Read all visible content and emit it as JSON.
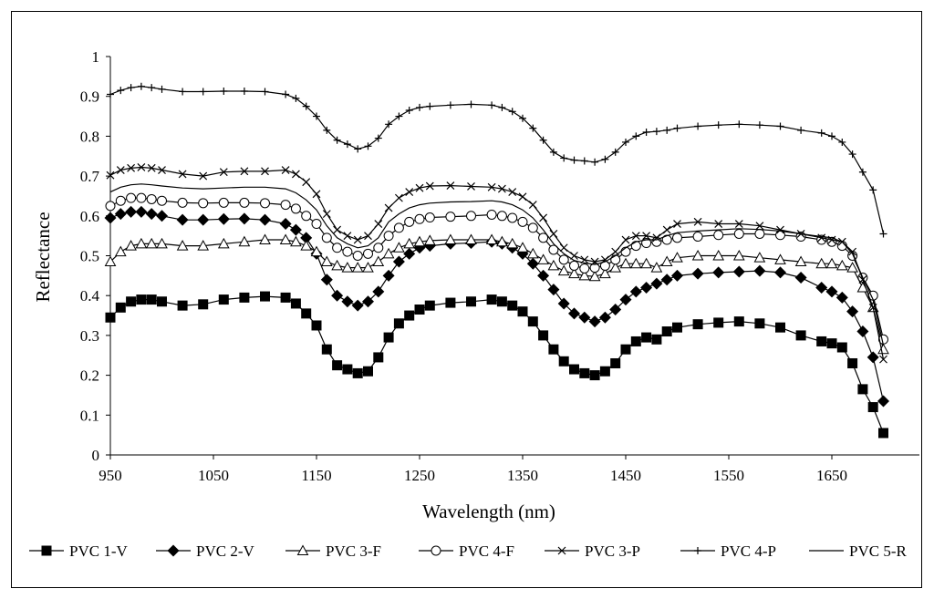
{
  "chart_data": {
    "type": "line",
    "title": "",
    "xlabel": "Wavelength (nm)",
    "ylabel": "Reflectance",
    "xlim": [
      950,
      1700
    ],
    "ylim": [
      0,
      1
    ],
    "x_ticks": [
      "950",
      "1050",
      "1150",
      "1250",
      "1350",
      "1450",
      "1550",
      "1650"
    ],
    "y_ticks": [
      "0",
      "0.1",
      "0.2",
      "0.3",
      "0.4",
      "0.5",
      "0.6",
      "0.7",
      "0.8",
      "0.9",
      "1"
    ],
    "grid": false,
    "legend_position": "bottom",
    "x": [
      950,
      960,
      970,
      980,
      990,
      1000,
      1020,
      1040,
      1060,
      1080,
      1100,
      1120,
      1130,
      1140,
      1150,
      1160,
      1170,
      1180,
      1190,
      1200,
      1210,
      1220,
      1230,
      1240,
      1250,
      1260,
      1280,
      1300,
      1320,
      1330,
      1340,
      1350,
      1360,
      1370,
      1380,
      1390,
      1400,
      1410,
      1420,
      1430,
      1440,
      1450,
      1460,
      1470,
      1480,
      1490,
      1500,
      1520,
      1540,
      1560,
      1580,
      1600,
      1620,
      1640,
      1650,
      1660,
      1670,
      1680,
      1690,
      1700
    ],
    "series": [
      {
        "name": "PVC 1-V",
        "marker": "square",
        "values": [
          0.345,
          0.37,
          0.385,
          0.39,
          0.39,
          0.385,
          0.375,
          0.378,
          0.39,
          0.395,
          0.398,
          0.395,
          0.38,
          0.355,
          0.325,
          0.265,
          0.225,
          0.215,
          0.205,
          0.21,
          0.245,
          0.295,
          0.33,
          0.35,
          0.365,
          0.375,
          0.382,
          0.385,
          0.39,
          0.385,
          0.375,
          0.36,
          0.335,
          0.3,
          0.265,
          0.235,
          0.215,
          0.205,
          0.2,
          0.21,
          0.23,
          0.265,
          0.285,
          0.295,
          0.29,
          0.31,
          0.32,
          0.328,
          0.332,
          0.335,
          0.33,
          0.32,
          0.3,
          0.285,
          0.28,
          0.27,
          0.23,
          0.165,
          0.12,
          0.055
        ]
      },
      {
        "name": "PVC 2-V",
        "marker": "diamond",
        "values": [
          0.595,
          0.605,
          0.61,
          0.61,
          0.605,
          0.6,
          0.59,
          0.59,
          0.592,
          0.593,
          0.59,
          0.58,
          0.565,
          0.545,
          0.505,
          0.44,
          0.4,
          0.385,
          0.375,
          0.385,
          0.41,
          0.45,
          0.485,
          0.505,
          0.52,
          0.525,
          0.53,
          0.532,
          0.535,
          0.53,
          0.52,
          0.505,
          0.48,
          0.45,
          0.415,
          0.38,
          0.355,
          0.345,
          0.335,
          0.345,
          0.365,
          0.39,
          0.41,
          0.42,
          0.43,
          0.44,
          0.45,
          0.455,
          0.458,
          0.46,
          0.462,
          0.458,
          0.445,
          0.42,
          0.41,
          0.395,
          0.36,
          0.31,
          0.245,
          0.135
        ]
      },
      {
        "name": "PVC 3-F",
        "marker": "triangle",
        "values": [
          0.485,
          0.51,
          0.525,
          0.53,
          0.53,
          0.53,
          0.525,
          0.525,
          0.53,
          0.535,
          0.54,
          0.54,
          0.535,
          0.525,
          0.51,
          0.485,
          0.475,
          0.47,
          0.47,
          0.47,
          0.485,
          0.505,
          0.52,
          0.53,
          0.535,
          0.538,
          0.54,
          0.54,
          0.54,
          0.535,
          0.53,
          0.52,
          0.505,
          0.49,
          0.475,
          0.462,
          0.455,
          0.45,
          0.448,
          0.455,
          0.47,
          0.48,
          0.48,
          0.48,
          0.47,
          0.485,
          0.495,
          0.5,
          0.5,
          0.5,
          0.495,
          0.49,
          0.485,
          0.48,
          0.48,
          0.475,
          0.47,
          0.42,
          0.37,
          0.265
        ]
      },
      {
        "name": "PVC 4-F",
        "marker": "circle",
        "values": [
          0.625,
          0.638,
          0.645,
          0.645,
          0.642,
          0.638,
          0.633,
          0.632,
          0.633,
          0.633,
          0.632,
          0.628,
          0.618,
          0.6,
          0.58,
          0.545,
          0.52,
          0.51,
          0.5,
          0.505,
          0.52,
          0.55,
          0.57,
          0.585,
          0.592,
          0.596,
          0.598,
          0.6,
          0.603,
          0.6,
          0.595,
          0.585,
          0.57,
          0.545,
          0.515,
          0.49,
          0.475,
          0.468,
          0.47,
          0.475,
          0.49,
          0.51,
          0.525,
          0.532,
          0.535,
          0.54,
          0.545,
          0.548,
          0.552,
          0.555,
          0.555,
          0.552,
          0.548,
          0.54,
          0.535,
          0.525,
          0.5,
          0.445,
          0.4,
          0.29
        ]
      },
      {
        "name": "PVC 3-P",
        "marker": "x",
        "values": [
          0.702,
          0.715,
          0.72,
          0.722,
          0.72,
          0.715,
          0.705,
          0.7,
          0.71,
          0.712,
          0.712,
          0.715,
          0.705,
          0.685,
          0.655,
          0.605,
          0.565,
          0.55,
          0.54,
          0.55,
          0.58,
          0.62,
          0.645,
          0.66,
          0.67,
          0.675,
          0.676,
          0.674,
          0.672,
          0.668,
          0.66,
          0.648,
          0.628,
          0.595,
          0.555,
          0.52,
          0.5,
          0.49,
          0.485,
          0.49,
          0.51,
          0.54,
          0.55,
          0.55,
          0.545,
          0.565,
          0.58,
          0.585,
          0.58,
          0.58,
          0.575,
          0.565,
          0.555,
          0.545,
          0.54,
          0.535,
          0.51,
          0.44,
          0.37,
          0.24
        ]
      },
      {
        "name": "PVC 4-P",
        "marker": "plus",
        "values": [
          0.905,
          0.915,
          0.922,
          0.925,
          0.922,
          0.918,
          0.912,
          0.912,
          0.913,
          0.913,
          0.912,
          0.905,
          0.895,
          0.875,
          0.85,
          0.815,
          0.79,
          0.78,
          0.768,
          0.775,
          0.795,
          0.83,
          0.85,
          0.865,
          0.872,
          0.875,
          0.878,
          0.88,
          0.878,
          0.872,
          0.862,
          0.845,
          0.82,
          0.79,
          0.76,
          0.745,
          0.74,
          0.738,
          0.735,
          0.742,
          0.76,
          0.785,
          0.8,
          0.81,
          0.812,
          0.815,
          0.82,
          0.825,
          0.828,
          0.83,
          0.828,
          0.825,
          0.815,
          0.808,
          0.8,
          0.785,
          0.755,
          0.71,
          0.665,
          0.555
        ]
      },
      {
        "name": "PVC 5-R",
        "marker": "none",
        "values": [
          0.66,
          0.672,
          0.678,
          0.68,
          0.678,
          0.675,
          0.67,
          0.668,
          0.67,
          0.672,
          0.672,
          0.668,
          0.658,
          0.64,
          0.615,
          0.575,
          0.545,
          0.53,
          0.52,
          0.525,
          0.545,
          0.585,
          0.605,
          0.62,
          0.628,
          0.632,
          0.635,
          0.636,
          0.638,
          0.635,
          0.628,
          0.615,
          0.595,
          0.565,
          0.53,
          0.505,
          0.488,
          0.482,
          0.478,
          0.485,
          0.5,
          0.52,
          0.535,
          0.54,
          0.54,
          0.55,
          0.558,
          0.562,
          0.565,
          0.568,
          0.566,
          0.562,
          0.555,
          0.548,
          0.545,
          0.535,
          0.505,
          0.445,
          0.39,
          0.275
        ]
      }
    ]
  }
}
